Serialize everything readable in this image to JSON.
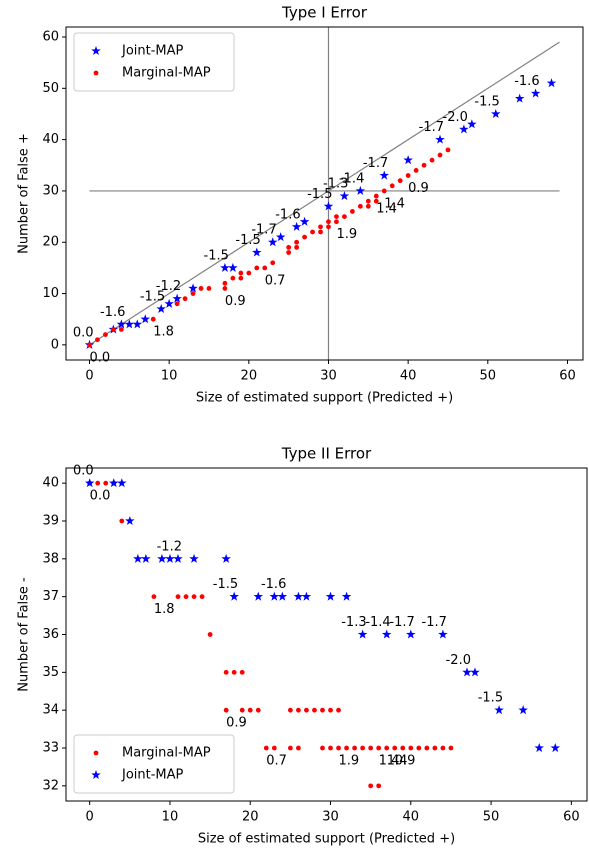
{
  "chart_data": [
    {
      "type": "scatter",
      "title": "Type I Error",
      "x_label": "Size of estimated support (Predicted +)",
      "y_label": "Number of False +",
      "xlim": [
        -2.95,
        61.95
      ],
      "ylim": [
        -2.95,
        61.95
      ],
      "xticks": [
        0,
        10,
        20,
        30,
        40,
        50,
        60
      ],
      "yticks": [
        0,
        10,
        20,
        30,
        40,
        50,
        60
      ],
      "legend_loc": "upper left",
      "reference_lines": {
        "hline": 30,
        "vline": 30,
        "diagonal": [
          0,
          59
        ],
        "color": "#808080"
      },
      "series": [
        {
          "name": "Joint-MAP",
          "color": "#0000ff",
          "marker": "star",
          "x": [
            0,
            3,
            4,
            5,
            6,
            7,
            9,
            10,
            11,
            13,
            17,
            18,
            21,
            23,
            24,
            26,
            27,
            30,
            32,
            34,
            37,
            40,
            44,
            47,
            48,
            51,
            54,
            56,
            58
          ],
          "values": [
            0,
            3,
            4,
            4,
            4,
            5,
            7,
            8,
            9,
            11,
            15,
            15,
            18,
            20,
            21,
            23,
            24,
            27,
            29,
            30,
            33,
            36,
            40,
            42,
            43,
            45,
            48,
            49,
            51
          ],
          "annotations": [
            {
              "text": "0.0",
              "x": 0,
              "y": 0
            },
            {
              "text": "-1.6",
              "x": 4,
              "y": 4
            },
            {
              "text": "-1.5",
              "x": 9,
              "y": 7
            },
            {
              "text": "-1.2",
              "x": 11,
              "y": 9
            },
            {
              "text": "-1.5",
              "x": 17,
              "y": 15
            },
            {
              "text": "-1.5",
              "x": 21,
              "y": 18
            },
            {
              "text": "-1.7",
              "x": 23,
              "y": 20
            },
            {
              "text": "-1.6",
              "x": 26,
              "y": 23
            },
            {
              "text": "-1.5",
              "x": 30,
              "y": 27
            },
            {
              "text": "-1.3",
              "x": 32,
              "y": 29
            },
            {
              "text": "-1.4",
              "x": 34,
              "y": 30
            },
            {
              "text": "-1.7",
              "x": 37,
              "y": 33
            },
            {
              "text": "-1.7",
              "x": 44,
              "y": 40
            },
            {
              "text": "-2.0",
              "x": 47,
              "y": 42
            },
            {
              "text": "-1.5",
              "x": 51,
              "y": 45
            },
            {
              "text": "-1.6",
              "x": 56,
              "y": 49
            }
          ]
        },
        {
          "name": "Marginal-MAP",
          "color": "#ff0000",
          "marker": "circle",
          "x": [
            0,
            1,
            2,
            3,
            4,
            8,
            11,
            12,
            13,
            14,
            15,
            17,
            18,
            19,
            17,
            19,
            20,
            21,
            22,
            23,
            25,
            26,
            27,
            28,
            29,
            30,
            31,
            25,
            26,
            29,
            30,
            31,
            32,
            33,
            34,
            35,
            36,
            37,
            38,
            39,
            40,
            41,
            42,
            43,
            44,
            45,
            35,
            36
          ],
          "values": [
            0,
            1,
            2,
            3,
            3,
            5,
            8,
            9,
            10,
            11,
            11,
            12,
            13,
            14,
            11,
            13,
            14,
            15,
            15,
            16,
            19,
            20,
            21,
            22,
            23,
            24,
            25,
            18,
            19,
            22,
            23,
            24,
            25,
            26,
            27,
            28,
            29,
            30,
            31,
            32,
            33,
            34,
            35,
            36,
            37,
            38,
            27,
            28
          ],
          "annotations": [
            {
              "text": "0.0",
              "x": 0,
              "y": 0
            },
            {
              "text": "1.8",
              "x": 8,
              "y": 5
            },
            {
              "text": "0.9",
              "x": 17,
              "y": 11
            },
            {
              "text": "0.7",
              "x": 22,
              "y": 15
            },
            {
              "text": "1.9",
              "x": 31,
              "y": 24
            },
            {
              "text": "1.4",
              "x": 36,
              "y": 29
            },
            {
              "text": "1.4",
              "x": 37,
              "y": 30
            },
            {
              "text": "0.9",
              "x": 40,
              "y": 33
            }
          ]
        }
      ]
    },
    {
      "type": "scatter",
      "title": "Type II Error",
      "x_label": "Size of estimated support (Predicted +)",
      "y_label": "Number of False -",
      "xlim": [
        -2.95,
        61.95
      ],
      "ylim": [
        31.6,
        40.4
      ],
      "xticks": [
        0,
        10,
        20,
        30,
        40,
        50,
        60
      ],
      "yticks": [
        32,
        33,
        34,
        35,
        36,
        37,
        38,
        39,
        40
      ],
      "legend_loc": "lower left",
      "series": [
        {
          "name": "Marginal-MAP",
          "color": "#ff0000",
          "marker": "circle",
          "x": [
            0,
            1,
            2,
            3,
            4,
            8,
            11,
            12,
            13,
            14,
            15,
            17,
            18,
            19,
            17,
            19,
            20,
            21,
            22,
            23,
            25,
            26,
            27,
            28,
            29,
            30,
            31,
            25,
            26,
            29,
            30,
            31,
            32,
            33,
            34,
            35,
            36,
            37,
            38,
            39,
            40,
            41,
            42,
            43,
            44,
            45,
            35,
            36
          ],
          "values": [
            40,
            40,
            40,
            40,
            39,
            37,
            37,
            37,
            37,
            37,
            36,
            35,
            35,
            35,
            34,
            34,
            34,
            34,
            33,
            33,
            34,
            34,
            34,
            34,
            34,
            34,
            34,
            33,
            33,
            33,
            33,
            33,
            33,
            33,
            33,
            33,
            33,
            33,
            33,
            33,
            33,
            33,
            33,
            33,
            33,
            33,
            32,
            32
          ],
          "annotations": [
            {
              "text": "0.0",
              "x": 0,
              "y": 40
            },
            {
              "text": "1.8",
              "x": 8,
              "y": 37
            },
            {
              "text": "0.9",
              "x": 17,
              "y": 34
            },
            {
              "text": "0.7",
              "x": 22,
              "y": 33
            },
            {
              "text": "1.9",
              "x": 31,
              "y": 33
            },
            {
              "text": "1.4",
              "x": 36,
              "y": 33
            },
            {
              "text": "1.4",
              "x": 37,
              "y": 33
            },
            {
              "text": "0.9",
              "x": 38,
              "y": 33
            }
          ]
        },
        {
          "name": "Joint-MAP",
          "color": "#0000ff",
          "marker": "star",
          "x": [
            0,
            3,
            4,
            5,
            6,
            7,
            9,
            10,
            11,
            13,
            17,
            18,
            21,
            23,
            24,
            26,
            27,
            30,
            32,
            34,
            37,
            40,
            44,
            47,
            48,
            51,
            54,
            56,
            58
          ],
          "values": [
            40,
            40,
            40,
            39,
            38,
            38,
            38,
            38,
            38,
            38,
            38,
            37,
            37,
            37,
            37,
            37,
            37,
            37,
            37,
            36,
            36,
            36,
            36,
            35,
            35,
            34,
            34,
            33,
            33
          ],
          "annotations": [
            {
              "text": "0.0",
              "x": 0,
              "y": 40
            },
            {
              "text": "-1.2",
              "x": 11,
              "y": 38
            },
            {
              "text": "-1.5",
              "x": 18,
              "y": 37
            },
            {
              "text": "-1.6",
              "x": 24,
              "y": 37
            },
            {
              "text": "-1.3",
              "x": 34,
              "y": 36
            },
            {
              "text": "-1.4",
              "x": 37,
              "y": 36
            },
            {
              "text": "-1.7",
              "x": 40,
              "y": 36
            },
            {
              "text": "-1.7",
              "x": 44,
              "y": 36
            },
            {
              "text": "-2.0",
              "x": 47,
              "y": 35
            },
            {
              "text": "-1.5",
              "x": 51,
              "y": 34
            }
          ]
        }
      ]
    }
  ]
}
